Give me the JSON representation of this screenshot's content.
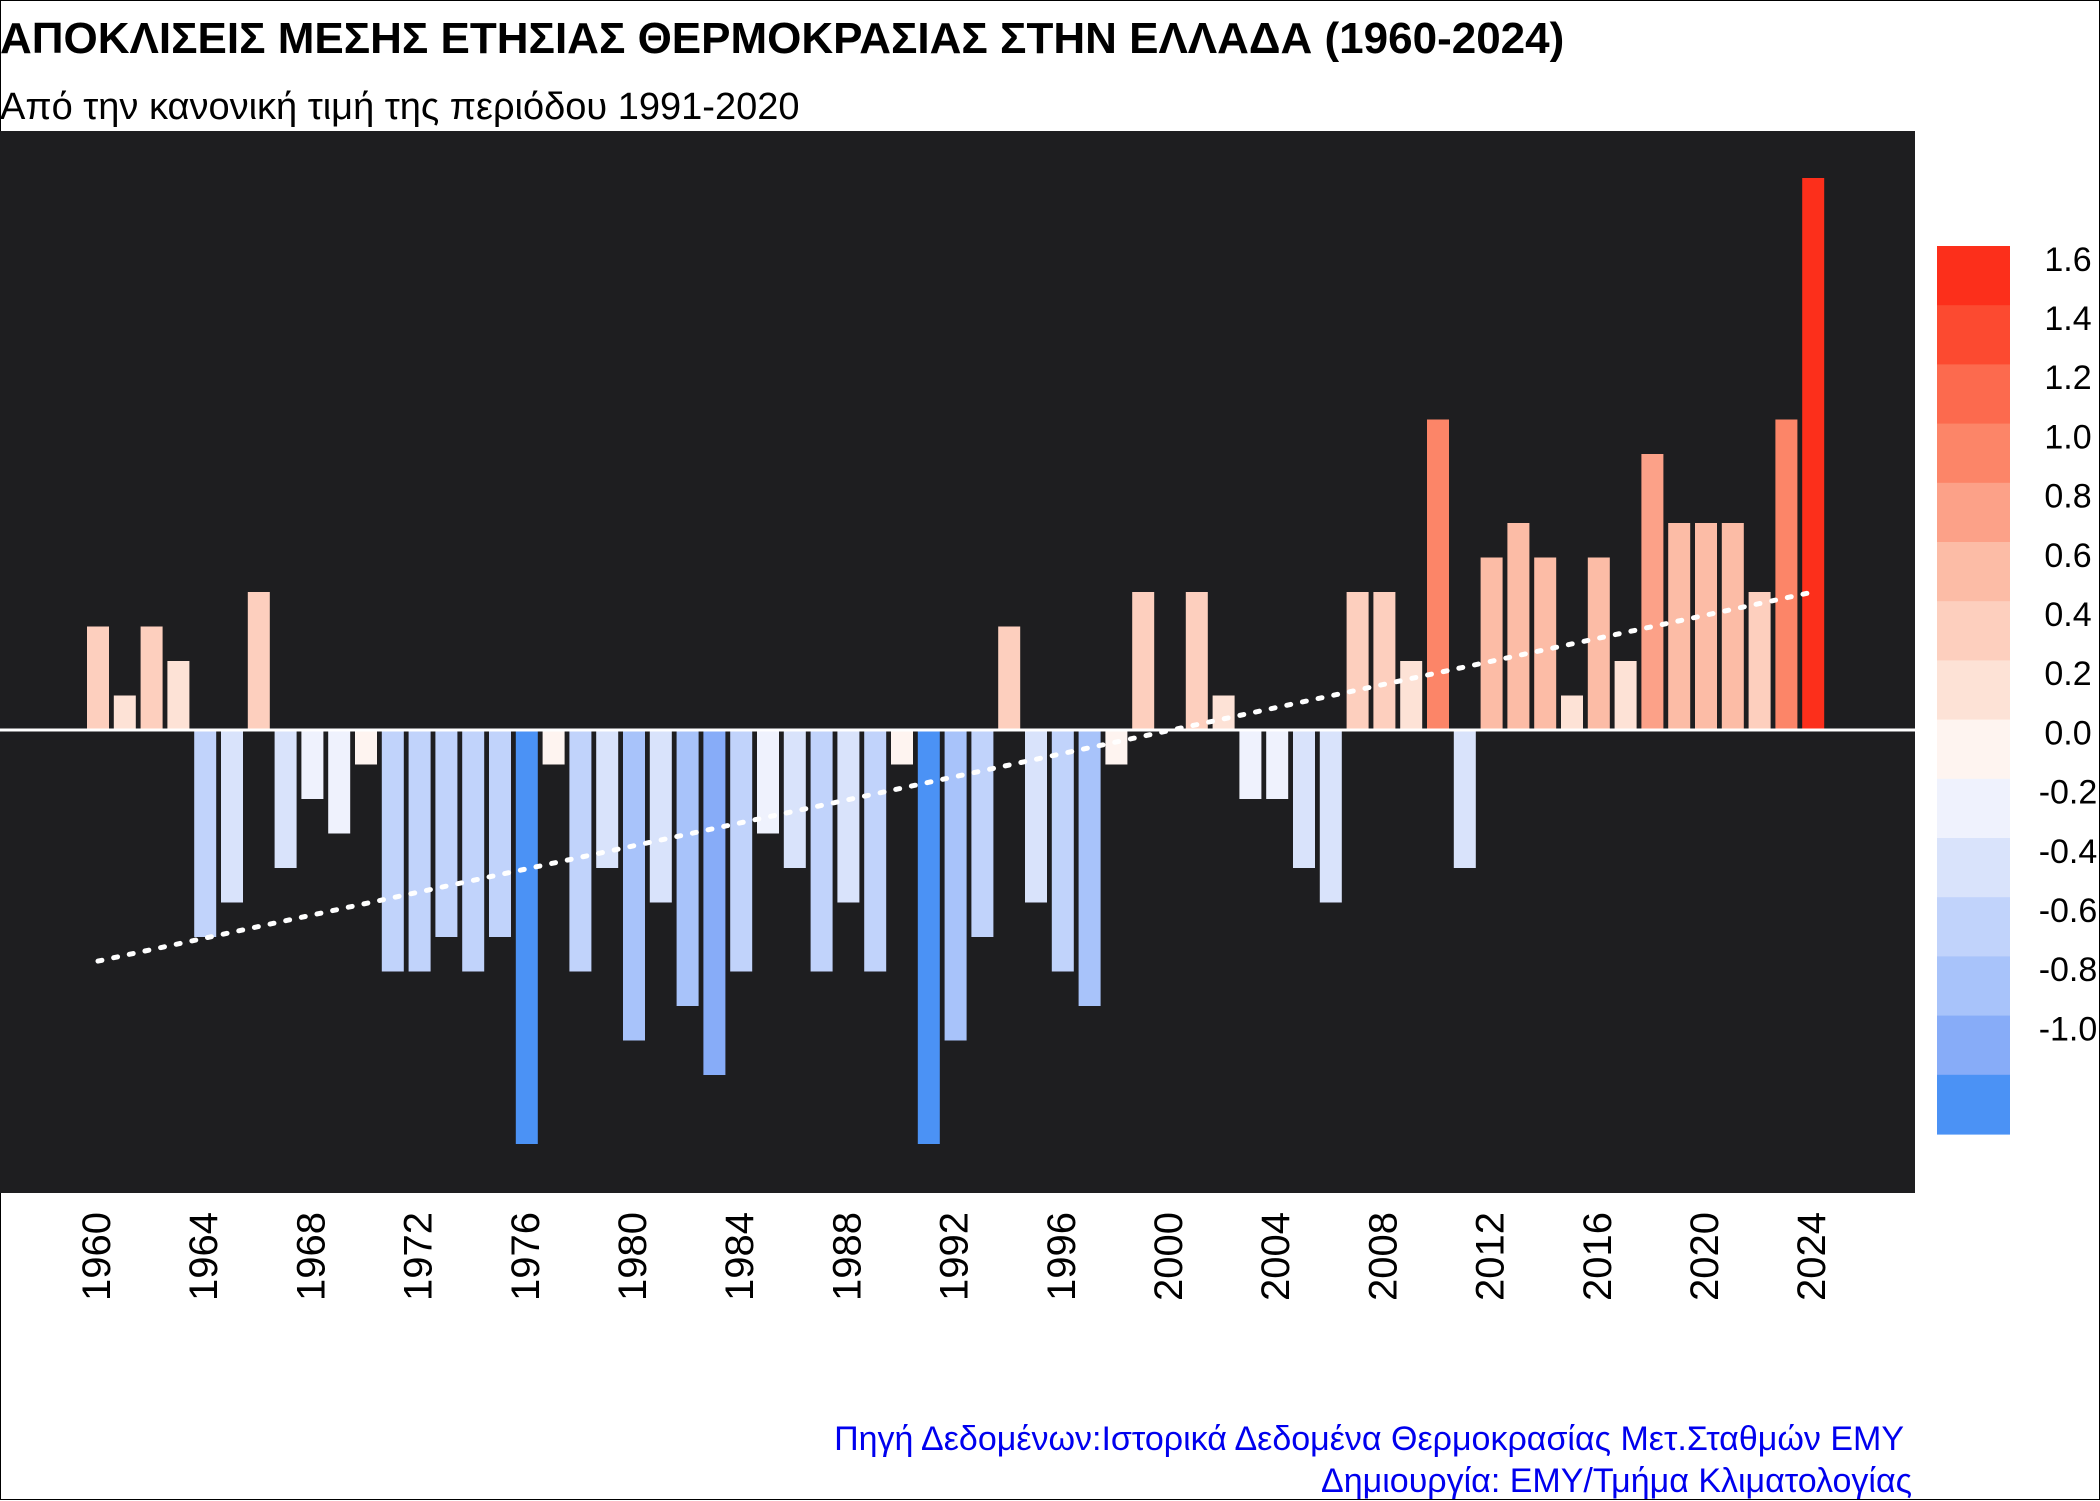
{
  "title": "ΑΠΟΚΛΙΣΕΙΣ  ΜΕΣΗΣ ΕΤΗΣΙΑΣ ΘΕΡΜΟΚΡΑΣΙΑΣ ΣΤΗΝ ΕΛΛΑΔΑ (1960-2024)",
  "subtitle": "Από την κανονική τιμή της περιόδου 1991-2020",
  "footer": {
    "source": "Πηγή Δεδομένων:Ιστορικά Δεδομένα Θερμοκρασίας Μετ.Σταθμών ΕΜΥ",
    "credit": "Δημιουργία: ΕΜΥ/Τμήμα Κλιματολογίας"
  },
  "chart_data": {
    "type": "bar",
    "x": [
      1960,
      1961,
      1962,
      1963,
      1964,
      1965,
      1966,
      1967,
      1968,
      1969,
      1970,
      1971,
      1972,
      1973,
      1974,
      1975,
      1976,
      1977,
      1978,
      1979,
      1980,
      1981,
      1982,
      1983,
      1984,
      1985,
      1986,
      1987,
      1988,
      1989,
      1990,
      1991,
      1992,
      1993,
      1994,
      1995,
      1996,
      1997,
      1998,
      1999,
      2000,
      2001,
      2002,
      2003,
      2004,
      2005,
      2006,
      2007,
      2008,
      2009,
      2010,
      2011,
      2012,
      2013,
      2014,
      2015,
      2016,
      2017,
      2018,
      2019,
      2020,
      2021,
      2022,
      2023,
      2024
    ],
    "values": [
      0.3,
      0.1,
      0.3,
      0.2,
      -0.6,
      -0.5,
      0.4,
      -0.4,
      -0.2,
      -0.3,
      -0.1,
      -0.7,
      -0.7,
      -0.6,
      -0.7,
      -0.6,
      -1.2,
      -0.1,
      -0.7,
      -0.4,
      -0.9,
      -0.5,
      -0.8,
      -1.0,
      -0.7,
      -0.3,
      -0.4,
      -0.7,
      -0.5,
      -0.7,
      -0.1,
      -1.2,
      -0.9,
      -0.6,
      0.3,
      -0.5,
      -0.7,
      -0.8,
      -0.1,
      0.4,
      0.0,
      0.4,
      0.1,
      -0.2,
      -0.2,
      -0.4,
      -0.5,
      0.4,
      0.4,
      0.2,
      0.9,
      -0.4,
      0.5,
      0.6,
      0.5,
      0.1,
      0.5,
      0.2,
      0.8,
      0.6,
      0.6,
      0.6,
      0.4,
      0.9,
      1.6
    ],
    "x_tick_labels": [
      "1960",
      "1964",
      "1968",
      "1972",
      "1976",
      "1980",
      "1984",
      "1988",
      "1992",
      "1996",
      "2000",
      "2004",
      "2008",
      "2012",
      "2016",
      "2020",
      "2024"
    ],
    "trend": {
      "style": "dotted",
      "color": "#ffffff",
      "start": -0.67,
      "end": 0.4
    },
    "ylim": [
      -1.35,
      1.6
    ],
    "background": "#1e1e20",
    "zero_line_color": "#ffffff",
    "colorbar": {
      "ticks": [
        "1.6",
        "1.4",
        "1.2",
        "1.0",
        "0.8",
        "0.6",
        "0.4",
        "0.2",
        "0.0",
        "-0.2",
        "-0.4",
        "-0.6",
        "-0.8",
        "-1.0"
      ],
      "colors": [
        "#fc2f1b",
        "#fc4a30",
        "#fc6a4e",
        "#fc8568",
        "#fca188",
        "#fcbca6",
        "#fdcfbe",
        "#fde2d6",
        "#fef4f0",
        "#eff2fd",
        "#d9e3fb",
        "#c1d3fb",
        "#a8c3fa",
        "#87acf8",
        "#4b92f5"
      ]
    },
    "legend": "right",
    "grid": false
  }
}
